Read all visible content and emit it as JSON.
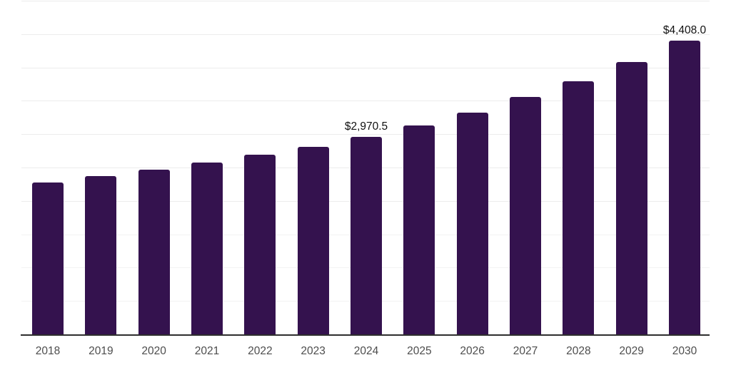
{
  "chart_data": {
    "type": "bar",
    "title": "",
    "xlabel": "",
    "ylabel": "",
    "categories": [
      "2018",
      "2019",
      "2020",
      "2021",
      "2022",
      "2023",
      "2024",
      "2025",
      "2026",
      "2027",
      "2028",
      "2029",
      "2030"
    ],
    "values": [
      2290,
      2385,
      2480,
      2590,
      2700,
      2825,
      2970.5,
      3145,
      3330,
      3570,
      3805,
      4095,
      4408
    ],
    "data_labels": {
      "2024": "$2,970.5",
      "2030": "$4,408.0"
    },
    "ylim": [
      0,
      5000
    ],
    "gridline_step": 500,
    "grid": "horizontal",
    "legend_position": "none",
    "colors": {
      "bar": "#34124E",
      "gridline": "#ececec",
      "gridline_faint": "#f3f3f3",
      "axis_line": "#2e2e2e",
      "tick_label": "#4d4d4d",
      "data_label": "#111111"
    }
  }
}
